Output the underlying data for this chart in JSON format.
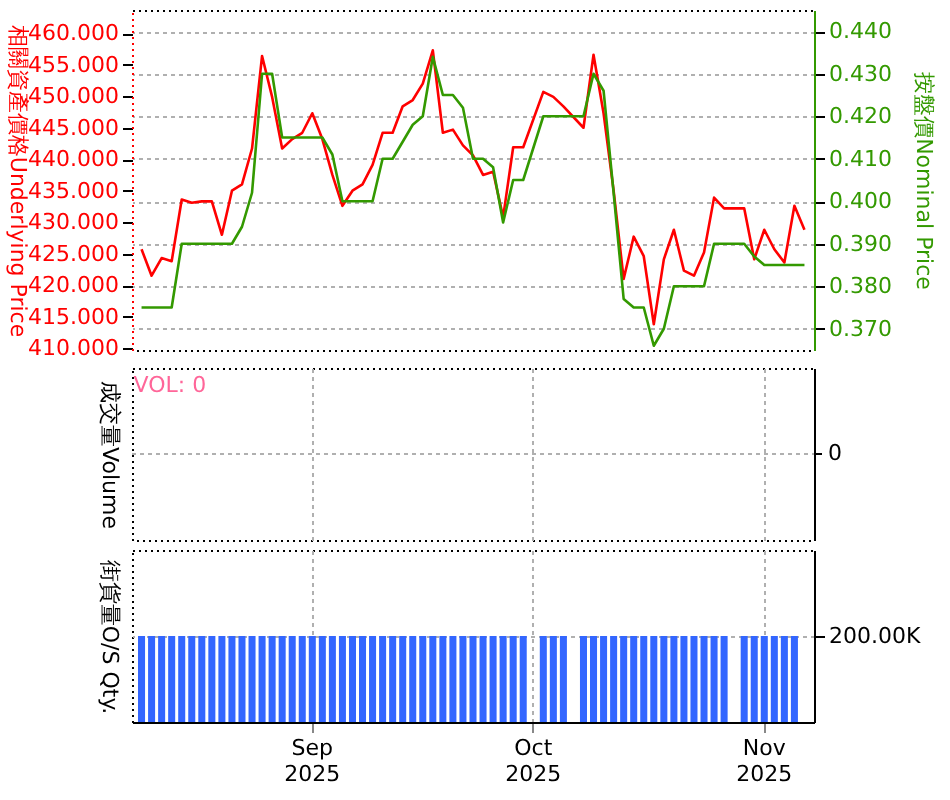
{
  "chart_data": [
    {
      "type": "line",
      "ylabel": "相關資產價格Underlying Price",
      "y2label": "按盤價Nominal Price",
      "grid": true,
      "tick_labels": "y",
      "ylim": [
        409.7,
        463.7
      ],
      "yticks": [
        {
          "value": 410,
          "label": "410.000"
        },
        {
          "value": 415,
          "label": "415.000"
        },
        {
          "value": 420,
          "label": "420.000"
        },
        {
          "value": 425,
          "label": "425.000"
        },
        {
          "value": 430,
          "label": "430.000"
        },
        {
          "value": 435,
          "label": "435.000"
        },
        {
          "value": 440,
          "label": "440.000"
        },
        {
          "value": 445,
          "label": "445.000"
        },
        {
          "value": 450,
          "label": "450.000"
        },
        {
          "value": 455,
          "label": "455.000"
        },
        {
          "value": 460,
          "label": "460.000"
        }
      ],
      "y2lim": [
        0.365,
        0.445
      ],
      "y2ticks": [
        {
          "value": 0.37,
          "label": "0.370"
        },
        {
          "value": 0.38,
          "label": "0.380"
        },
        {
          "value": 0.39,
          "label": "0.390"
        },
        {
          "value": 0.4,
          "label": "0.400"
        },
        {
          "value": 0.41,
          "label": "0.410"
        },
        {
          "value": 0.42,
          "label": "0.420"
        },
        {
          "value": 0.43,
          "label": "0.430"
        },
        {
          "value": 0.44,
          "label": "0.440"
        }
      ],
      "series": [
        {
          "color": "#ff0000",
          "axis": "y",
          "values": [
            425.7,
            421.5,
            424.3,
            423.8,
            433.6,
            433.1,
            433.3,
            433.3,
            428.0,
            435.0,
            436.0,
            441.7,
            456.4,
            449.9,
            441.7,
            443.2,
            444.2,
            447.3,
            443.2,
            437.5,
            432.6,
            435.0,
            436.0,
            439.1,
            444.2,
            444.2,
            448.4,
            449.4,
            452.0,
            457.3,
            444.2,
            444.7,
            442.2,
            440.6,
            437.5,
            438.0,
            430.8,
            441.9,
            441.9,
            null,
            450.7,
            449.9,
            448.4,
            null,
            445.0,
            456.6,
            447.3,
            435.0,
            421.0,
            427.7,
            424.6,
            413.8,
            424.1,
            428.8,
            422.3,
            421.5,
            425.2,
            433.9,
            432.2,
            null,
            432.2,
            424.1,
            428.8,
            425.7,
            423.6,
            432.6,
            428.8
          ]
        },
        {
          "color": "#339900",
          "axis": "y2",
          "values": [
            0.375,
            0.375,
            0.375,
            0.375,
            0.39,
            0.39,
            0.39,
            0.39,
            0.39,
            0.39,
            0.394,
            0.402,
            0.43,
            0.43,
            0.415,
            0.415,
            0.415,
            0.415,
            0.415,
            0.411,
            0.4,
            0.4,
            0.4,
            0.4,
            0.41,
            0.41,
            0.414,
            0.418,
            0.42,
            0.434,
            0.425,
            0.425,
            0.422,
            0.41,
            0.41,
            0.408,
            0.395,
            0.405,
            0.405,
            null,
            0.42,
            0.42,
            0.42,
            null,
            0.42,
            0.43,
            0.426,
            0.402,
            0.377,
            0.375,
            0.375,
            0.366,
            0.37,
            0.38,
            0.38,
            0.38,
            0.38,
            0.39,
            0.39,
            null,
            0.39,
            0.387,
            0.385,
            0.385,
            0.385,
            0.385,
            0.385
          ]
        }
      ]
    },
    {
      "type": "other",
      "ylabel": "成交量Volume",
      "annotations": [
        "VOL: 0",
        "0"
      ]
    },
    {
      "type": "bar",
      "ylabel": "街貨量O/S Qty.",
      "grid": true,
      "color": "#3366ff",
      "categories": [
        null,
        null,
        null,
        null,
        null,
        null,
        null,
        null,
        null,
        null,
        null,
        null,
        null,
        null,
        null,
        null,
        null,
        "Sep 2025",
        null,
        null,
        null,
        null,
        null,
        null,
        null,
        null,
        null,
        null,
        null,
        null,
        null,
        null,
        null,
        null,
        null,
        null,
        null,
        null,
        null,
        "Oct 2025",
        null,
        null,
        null,
        null,
        null,
        null,
        null,
        null,
        null,
        null,
        null,
        null,
        null,
        null,
        null,
        null,
        null,
        null,
        null,
        null,
        null,
        null,
        "Nov 2025",
        null,
        null,
        null,
        null
      ],
      "ylim": [
        0,
        400000
      ],
      "yticks": [
        {
          "value": 200000,
          "label": "200.00K"
        }
      ],
      "values": [
        200000,
        200000,
        200000,
        200000,
        200000,
        200000,
        200000,
        200000,
        200000,
        200000,
        200000,
        200000,
        200000,
        200000,
        200000,
        200000,
        200000,
        200000,
        200000,
        200000,
        200000,
        200000,
        200000,
        200000,
        200000,
        200000,
        200000,
        200000,
        200000,
        200000,
        200000,
        200000,
        200000,
        200000,
        200000,
        200000,
        200000,
        200000,
        200000,
        null,
        200000,
        200000,
        200000,
        null,
        200000,
        200000,
        200000,
        200000,
        200000,
        200000,
        200000,
        200000,
        200000,
        200000,
        200000,
        200000,
        200000,
        200000,
        200000,
        null,
        200000,
        200000,
        200000,
        200000,
        200000,
        200000,
        null
      ]
    }
  ]
}
